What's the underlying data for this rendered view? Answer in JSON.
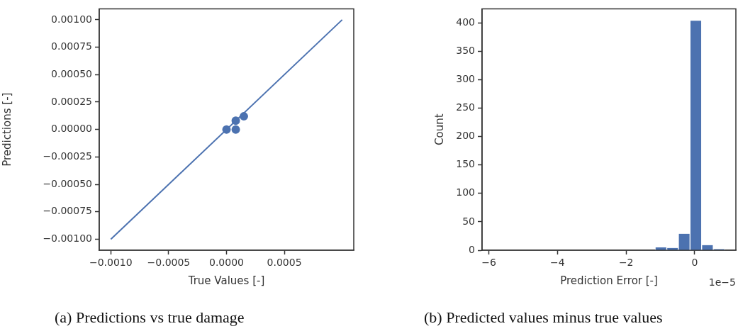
{
  "chart_data": [
    {
      "type": "scatter",
      "xlabel": "True Values [-]",
      "ylabel": "Predictions [-]",
      "xlim": [
        -0.0011,
        0.0011
      ],
      "ylim": [
        -0.0011,
        0.0011
      ],
      "xticks": [
        {
          "value": -0.001,
          "label": "−0.0010"
        },
        {
          "value": -0.0005,
          "label": "−0.0005"
        },
        {
          "value": 0,
          "label": "0.0000"
        },
        {
          "value": 0.0005,
          "label": "0.0005"
        }
      ],
      "yticks": [
        {
          "value": -0.001,
          "label": "−0.00100"
        },
        {
          "value": -0.00075,
          "label": "−0.00075"
        },
        {
          "value": -0.0005,
          "label": "−0.00050"
        },
        {
          "value": -0.00025,
          "label": "−0.00025"
        },
        {
          "value": 0,
          "label": "0.00000"
        },
        {
          "value": 0.00025,
          "label": "0.00025"
        },
        {
          "value": 0.0005,
          "label": "0.00050"
        },
        {
          "value": 0.00075,
          "label": "0.00075"
        },
        {
          "value": 0.001,
          "label": "0.00100"
        }
      ],
      "grid": false,
      "legend": false,
      "marker": "circle",
      "series": [
        {
          "type": "scatter",
          "color": "#4c72b0",
          "x": [
            0,
            8e-05,
            8e-05,
            0.00015
          ],
          "values": [
            0,
            8e-05,
            0,
            0.00012
          ]
        },
        {
          "type": "line",
          "color": "#4c72b0",
          "line_style": "solid",
          "marker": "none",
          "x": [
            -0.001,
            0.001
          ],
          "values": [
            -0.001,
            0.001
          ]
        }
      ],
      "annotations": [
        "(a) Predictions vs true damage"
      ]
    },
    {
      "type": "histogram",
      "xlabel": "Prediction Error [-]",
      "ylabel": "Count",
      "color": "#4c72b0",
      "bins": [
        -5.9,
        -5.561,
        -5.222,
        -4.883,
        -4.544,
        -4.205,
        -3.866,
        -3.527,
        -3.188,
        -2.849,
        -2.51,
        -2.171,
        -1.832,
        -1.493,
        -1.154,
        -0.815,
        -0.476,
        -0.137,
        0.202,
        0.541,
        0.88
      ],
      "values": [
        0,
        0,
        0,
        0,
        0,
        0,
        0,
        0,
        0,
        0,
        0,
        0,
        0,
        0,
        5,
        4,
        29,
        404,
        9,
        2
      ],
      "xlim": [
        -6.2,
        1.2
      ],
      "ylim": [
        0,
        425
      ],
      "xticks": [
        -6,
        -4,
        -2,
        0
      ],
      "yticks": [
        0,
        50,
        100,
        150,
        200,
        250,
        300,
        350,
        400
      ],
      "grid": false,
      "legend": false,
      "annotations": [
        "(b) Predicted values minus true values",
        "1e−5"
      ]
    }
  ]
}
